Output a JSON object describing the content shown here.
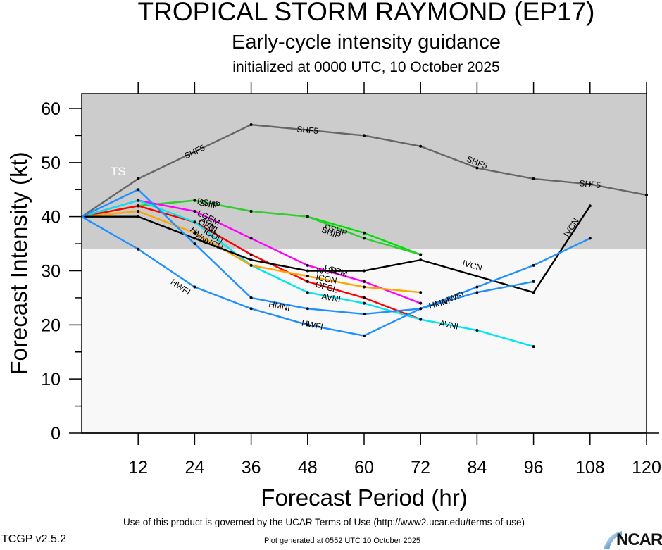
{
  "header": {
    "title": "TROPICAL STORM RAYMOND (EP17)",
    "subtitle": "Early-cycle intensity guidance",
    "init": "initialized at 0000 UTC, 10 October 2025"
  },
  "footer": {
    "terms": "Use of this product is governed by the UCAR Terms of Use (http://www2.ucar.edu/terms-of-use)",
    "generated": "Plot generated at 0552 UTC   10 October 2025",
    "version": "TCGP v2.5.2",
    "logo": "NCAR"
  },
  "chart_data": {
    "type": "line",
    "title": "TROPICAL STORM RAYMOND (EP17)",
    "xlabel": "Forecast Period (hr)",
    "ylabel": "Forecast Intensity (kt)",
    "xlim": [
      0,
      120
    ],
    "ylim": [
      0,
      63
    ],
    "xticks": [
      12,
      24,
      36,
      48,
      60,
      72,
      84,
      96,
      108,
      120
    ],
    "yticks": [
      0,
      10,
      20,
      30,
      40,
      50,
      60
    ],
    "grid": false,
    "shading": {
      "threshold": 34,
      "above_color": "#cccccc",
      "below_color": "#f8f8f8",
      "label": "TS"
    },
    "series": [
      {
        "name": "SHF5",
        "color": "#666666",
        "x": [
          0,
          12,
          36,
          48,
          60,
          72,
          84,
          96,
          108,
          120
        ],
        "values": [
          40,
          47,
          57,
          56,
          55,
          53,
          49,
          47,
          46,
          44
        ],
        "label_at": [
          [
            24,
            52
          ],
          [
            48,
            56
          ],
          [
            84,
            50
          ],
          [
            108,
            46
          ]
        ]
      },
      {
        "name": "DSHP",
        "color": "#00e000",
        "x": [
          0,
          12,
          24,
          36,
          48,
          60,
          72
        ],
        "values": [
          40,
          42,
          43,
          41,
          40,
          37,
          33
        ],
        "label_at": [
          [
            27,
            42.5
          ],
          [
            54,
            37.5
          ]
        ]
      },
      {
        "name": "SHIP",
        "color": "#33cc33",
        "x": [
          0,
          12,
          24,
          36,
          48,
          60,
          72
        ],
        "values": [
          40,
          42,
          43,
          41,
          40,
          36,
          33
        ],
        "label_at": [
          [
            27,
            42.3
          ],
          [
            53,
            37
          ]
        ]
      },
      {
        "name": "LGEM",
        "color": "#ff00ff",
        "x": [
          0,
          12,
          24,
          36,
          48,
          60,
          72
        ],
        "values": [
          40,
          43,
          41,
          36,
          31,
          28,
          24
        ],
        "label_at": [
          [
            27,
            39.8
          ],
          [
            54,
            30
          ]
        ]
      },
      {
        "name": "OFCL",
        "color": "#ff0000",
        "x": [
          0,
          12,
          24,
          36,
          48,
          60,
          72
        ],
        "values": [
          40,
          42,
          39,
          33,
          28,
          25,
          21
        ],
        "label_at": [
          [
            27,
            38.2
          ],
          [
            52,
            27
          ]
        ]
      },
      {
        "name": "AVNI",
        "color": "#00e5ee",
        "x": [
          0,
          12,
          24,
          36,
          48,
          60,
          72,
          84,
          96
        ],
        "values": [
          40,
          43,
          39,
          31,
          26,
          24,
          21,
          19,
          16
        ],
        "label_at": [
          [
            27,
            38.5
          ],
          [
            53,
            25
          ],
          [
            78,
            20
          ]
        ]
      },
      {
        "name": "ICON",
        "color": "#ffa500",
        "x": [
          0,
          12,
          24,
          36,
          48,
          60,
          72
        ],
        "values": [
          40,
          41,
          37,
          31,
          29,
          27,
          26
        ],
        "label_at": [
          [
            28,
            36.5
          ],
          [
            52,
            28.5
          ]
        ]
      },
      {
        "name": "IVCN",
        "color": "#000000",
        "x": [
          0,
          12,
          24,
          36,
          48,
          60,
          72,
          96,
          108
        ],
        "values": [
          40,
          40,
          36,
          32,
          30,
          30,
          32,
          26,
          42
        ],
        "label_at": [
          [
            28,
            35
          ],
          [
            52,
            30
          ],
          [
            83,
            31
          ],
          [
            104,
            38
          ]
        ]
      },
      {
        "name": "HMNI",
        "color": "#1e90ff",
        "x": [
          0,
          12,
          24,
          36,
          48,
          60,
          72,
          84,
          96
        ],
        "values": [
          40,
          45,
          35,
          25,
          23,
          22,
          23,
          26,
          28
        ],
        "label_at": [
          [
            25,
            36.5
          ],
          [
            42,
            23.5
          ],
          [
            76,
            24
          ]
        ]
      },
      {
        "name": "HWFI",
        "color": "#1e90ff",
        "x": [
          0,
          12,
          24,
          36,
          48,
          60,
          72,
          84,
          96,
          108
        ],
        "values": [
          40,
          34,
          27,
          23,
          20,
          18,
          23,
          27,
          31,
          36
        ],
        "label_at": [
          [
            21,
            27
          ],
          [
            49,
            20
          ],
          [
            79,
            25
          ]
        ]
      }
    ]
  }
}
